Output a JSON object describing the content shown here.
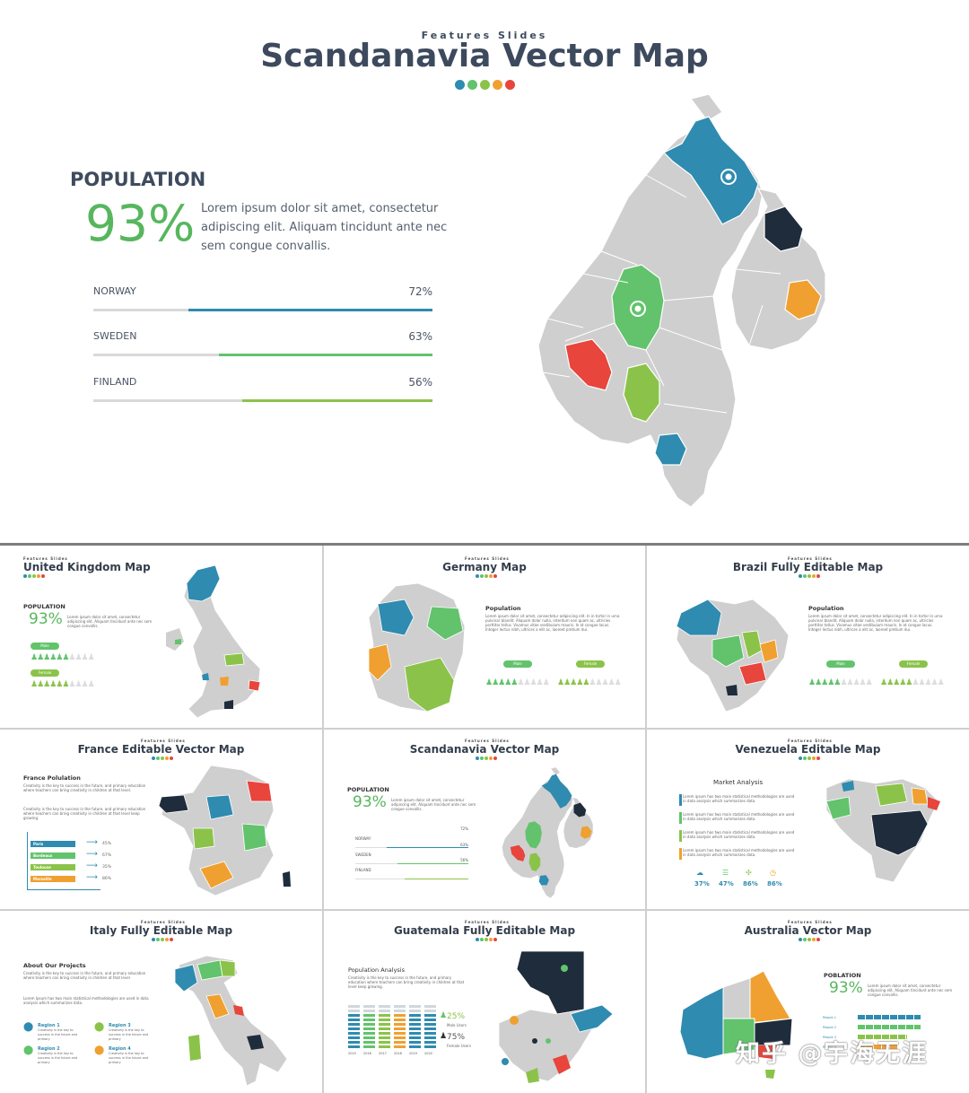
{
  "palette": {
    "blue": "#2f8bb0",
    "green": "#62c36c",
    "lime": "#8bc34a",
    "orange": "#f0a030",
    "red": "#e8453c",
    "navy": "#1f2c3b",
    "gray": "#cccccc",
    "teal": "#2a8fb2"
  },
  "hero": {
    "kicker": "Features Slides",
    "title": "Scandanavia Vector Map",
    "population_label": "POPULATION",
    "population_pct": "93%",
    "description": "Lorem ipsum dolor sit amet, consectetur adipiscing elit. Aliquam tincidunt ante nec sem congue convallis.",
    "bars": [
      {
        "name": "NORWAY",
        "value": "72%",
        "fill": 0.72,
        "color": "#2f8bb0"
      },
      {
        "name": "SWEDEN",
        "value": "63%",
        "fill": 0.63,
        "color": "#62c36c"
      },
      {
        "name": "FINLAND",
        "value": "56%",
        "fill": 0.56,
        "color": "#8bc34a"
      }
    ]
  },
  "tiles": {
    "uk": {
      "kicker": "Features Slides",
      "title": "United Kingdom Map",
      "sub": "POPULATION",
      "pct": "93%",
      "text": "Lorem ipsum dolor sit amet, consectetur adipiscing elit. Aliquam tincidunt ante nec sem congue convallis.",
      "male": "Male",
      "female": "Female"
    },
    "germany": {
      "kicker": "Features Slides",
      "title": "Germany Map",
      "sub": "Population",
      "text": "Lorem ipsum dolor sit amet, consectetur adipiscing elit. In in tortor in urna pulvinar blandit. Aliquam dolor nulla, interdum non quam ac, ultricies porttitor tellus. Vivamus vitae vestibulum mauris. In at congue lacus. Integer lectus nibh, ultrices a elit ac, laoreet pretium dui.",
      "male": "Male",
      "female": "Female"
    },
    "brazil": {
      "kicker": "Features Slides",
      "title": "Brazil Fully Editable Map",
      "sub": "Population",
      "text": "Lorem ipsum dolor sit amet, consectetur adipiscing elit. In in tortor in urna pulvinar blandit. Aliquam dolor nulla, interdum non quam ac, ultricies porttitor tellus. Vivamus vitae vestibulum mauris. In at congue lacus. Integer lectus nibh, ultrices a elit ac, laoreet pretium dui.",
      "male": "Male",
      "female": "Female"
    },
    "france": {
      "kicker": "Features Slides",
      "title": "France Editable Vector Map",
      "sub": "France Polulation",
      "text1": "Creativity is the key to success in the future, and primary education where teachers can bring creativity in children at that level.",
      "text2": "Creativity is the key to success in the future, and primary education where teachers can bring creativity in children at that level keep growing.",
      "rows": [
        {
          "label": "Paris",
          "value": "45%",
          "color": "#2f8bb0"
        },
        {
          "label": "Bordeaux",
          "value": "67%",
          "color": "#62c36c"
        },
        {
          "label": "Toulouse",
          "value": "35%",
          "color": "#8bc34a"
        },
        {
          "label": "Marseille",
          "value": "86%",
          "color": "#f0a030"
        }
      ]
    },
    "scandi": {
      "kicker": "Features Slides",
      "title": "Scandanavia Vector Map",
      "sub": "POPULATION",
      "pct": "93%",
      "text": "Lorem ipsum dolor sit amet, consectetur adipiscing elit. Aliquam tincidunt ante nec sem congue convallis.",
      "bars": [
        {
          "name": "NORWAY",
          "value": "72%"
        },
        {
          "name": "SWEDEN",
          "value": "63%"
        },
        {
          "name": "FINLAND",
          "value": "56%"
        }
      ]
    },
    "venezuela": {
      "kicker": "Features Slides",
      "title": "Venezuela Editable Map",
      "sub": "Market Analysis",
      "items": [
        "Lorem ipsum has two main statistical methodologies are used in data analysis which summarizes data.",
        "Lorem ipsum has two main statistical methodologies are used in data analysis which summarizes data.",
        "Lorem ipsum has two main statistical methodologies are used in data analysis which summarizes data.",
        "Lorem ipsum has two main statistical methodologies are used in data analysis which summarizes data."
      ],
      "stats": [
        "37%",
        "47%",
        "86%",
        "86%"
      ]
    },
    "italy": {
      "kicker": "Features Slides",
      "title": "Italy Fully Editable Map",
      "sub": "About Our Projects",
      "text1": "Creativity is the key to success in the future, and primary education where teachers can bring creativity in children at that level",
      "text2": "Lorem Ipsum has two main statistical methodologies are used in data analysis which summarizes data.",
      "regions": [
        "Region 1",
        "Region 2",
        "Region 3",
        "Region 4"
      ],
      "region_text": "Creativity is the key to success in the future and primary"
    },
    "guatemala": {
      "kicker": "Features Slides",
      "title": "Guatemala Fully Editable Map",
      "sub": "Population Analysis",
      "text": "Creativity is the key to success in the future, and primary education where teachers can bring creativity in children at that level keep growing.",
      "pct1": "25%",
      "pct1_label": "Male Users",
      "pct2": "75%",
      "pct2_label": "Female Users",
      "years": [
        "2015",
        "2016",
        "2017",
        "2018",
        "2019",
        "2020"
      ]
    },
    "australia": {
      "kicker": "Features Slides",
      "title": "Australia Vector Map",
      "sub": "POBLATION",
      "pct": "93%",
      "text": "Lorem ipsum dolor sit amet, consectetur adipiscing elit. Aliquam tincidunt ante nec sem congue convallis.",
      "people": [
        "People 1",
        "People 2",
        "People 3",
        "People 4"
      ]
    }
  },
  "watermark": "知乎 @宇海无涯"
}
